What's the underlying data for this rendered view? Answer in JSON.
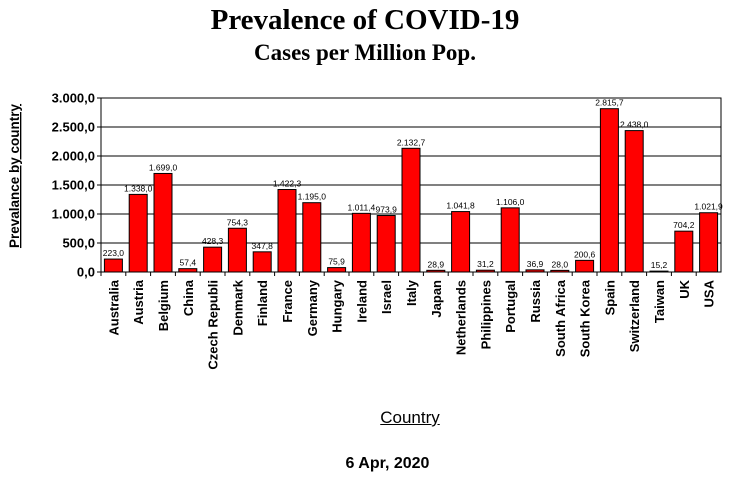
{
  "chart_data": {
    "type": "bar",
    "title": "Prevalence of COVID-19",
    "subtitle": "Cases per Million Pop.",
    "xlabel": "Country",
    "ylabel": "Prevalance by country",
    "footer": "6 Apr, 2020",
    "ylim": [
      0,
      3000
    ],
    "yticks": [
      0,
      500,
      1000,
      1500,
      2000,
      2500,
      3000
    ],
    "ytick_labels": [
      "0,0",
      "500,0",
      "1.000,0",
      "1.500,0",
      "2.000,0",
      "2.500,0",
      "3.000,0"
    ],
    "grid": true,
    "bar_color": "#ff0000",
    "categories": [
      "Australia",
      "Austria",
      "Belgium",
      "China",
      "Czech Republi",
      "Denmark",
      "Finland",
      "France",
      "Germany",
      "Hungary",
      "Ireland",
      "Israel",
      "Italy",
      "Japan",
      "Netherlands",
      "Philippines",
      "Portugal",
      "Russia",
      "South Africa",
      "South Korea",
      "Spain",
      "Switzerland",
      "Taiwan",
      "UK",
      "USA"
    ],
    "values": [
      223.0,
      1338.0,
      1699.0,
      57.4,
      428.3,
      754.3,
      347.8,
      1422.3,
      1195.0,
      75.9,
      1011.4,
      973.9,
      2132.7,
      28.9,
      1041.8,
      31.2,
      1106.0,
      36.9,
      28.0,
      200.6,
      2815.7,
      2438.0,
      15.2,
      704.2,
      1021.9
    ],
    "value_labels": [
      "223,0",
      "1.338,0",
      "1.699,0",
      "57,4",
      "428,3",
      "754,3",
      "347,8",
      "1.422,3",
      "1.195,0",
      "75,9",
      "1.011,4",
      "973,9",
      "2.132,7",
      "28,9",
      "1.041,8",
      "31,2",
      "1.106,0",
      "36,9",
      "28,0",
      "200,6",
      "2.815,7",
      "2.438,0",
      "15,2",
      "704,2",
      "1.021,9"
    ]
  }
}
